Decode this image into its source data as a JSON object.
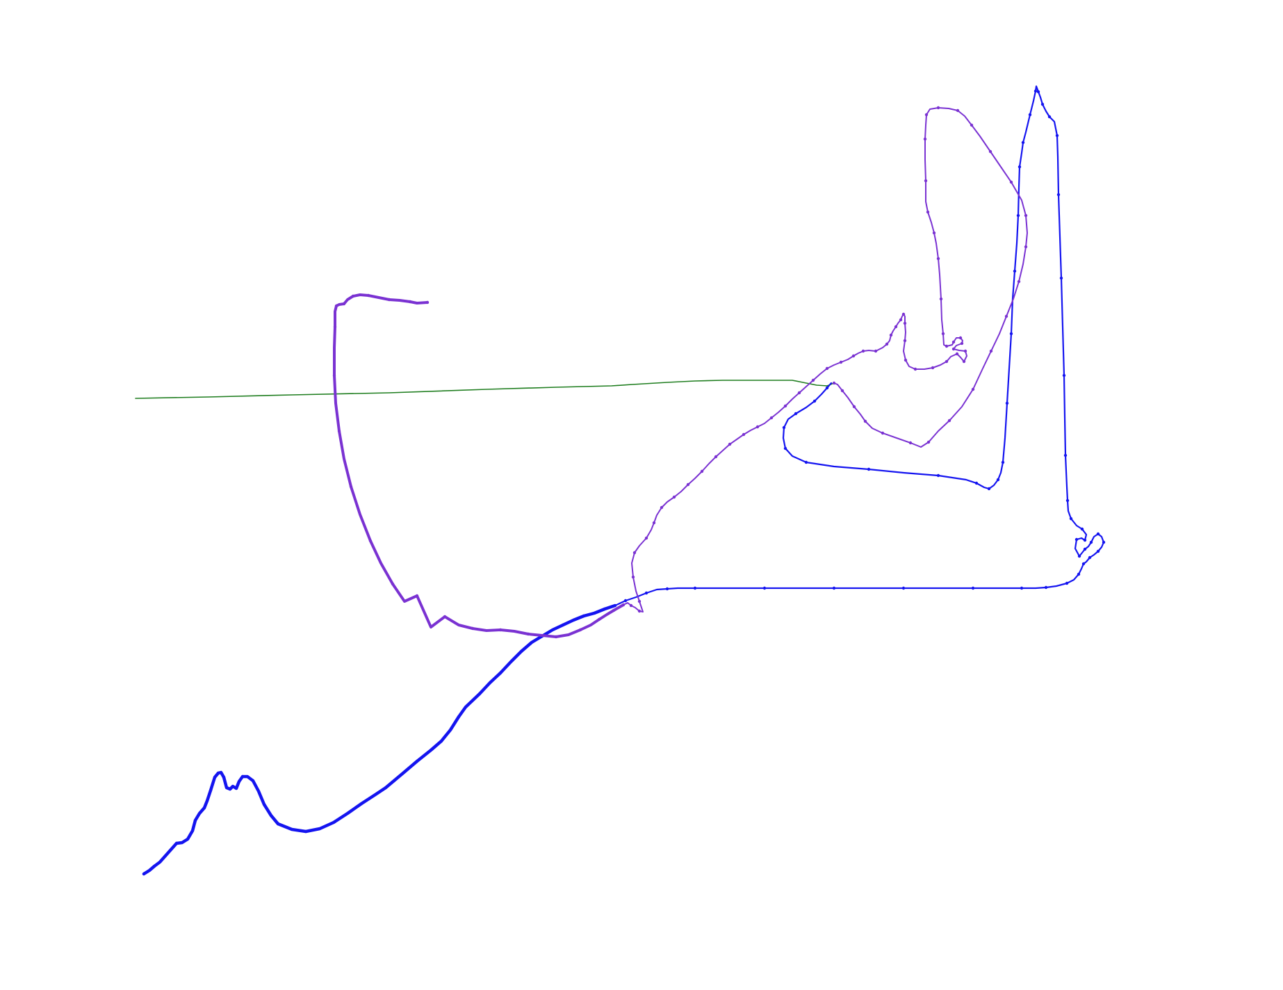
{
  "colors": {
    "background": "#ffffff",
    "blue": "#1414f0",
    "purple": "#7a32d2",
    "green": "#1e7d1e"
  },
  "traces": [
    {
      "name": "green-trace",
      "color": "#1e7d1e",
      "vertex_markers": false,
      "path": [
        [
          195,
          573
        ],
        [
          300,
          571
        ],
        [
          420,
          568
        ],
        [
          560,
          565
        ],
        [
          700,
          560
        ],
        [
          800,
          557
        ],
        [
          880,
          555
        ],
        [
          910,
          553
        ],
        [
          960,
          550
        ],
        [
          1000,
          548
        ],
        [
          1040,
          547
        ],
        [
          1100,
          547
        ],
        [
          1140,
          547
        ],
        [
          1160,
          551
        ],
        [
          1175,
          554
        ],
        [
          1190,
          555
        ],
        [
          1200,
          551
        ]
      ]
    },
    {
      "name": "blue-trace",
      "color": "#1414f0",
      "vertex_markers": true,
      "path": [
        [
          207,
          1257
        ],
        [
          215,
          1252
        ],
        [
          222,
          1246
        ],
        [
          230,
          1240
        ],
        [
          238,
          1231
        ],
        [
          246,
          1222
        ],
        [
          254,
          1213
        ],
        [
          262,
          1212
        ],
        [
          270,
          1207
        ],
        [
          277,
          1195
        ],
        [
          281,
          1180
        ],
        [
          287,
          1170
        ],
        [
          294,
          1162
        ],
        [
          298,
          1152
        ],
        [
          303,
          1137
        ],
        [
          309,
          1118
        ],
        [
          314,
          1112
        ],
        [
          318,
          1111
        ],
        [
          322,
          1118
        ],
        [
          326,
          1133
        ],
        [
          331,
          1135
        ],
        [
          335,
          1131
        ],
        [
          340,
          1134
        ],
        [
          344,
          1124
        ],
        [
          349,
          1117
        ],
        [
          356,
          1117
        ],
        [
          364,
          1123
        ],
        [
          372,
          1138
        ],
        [
          380,
          1157
        ],
        [
          390,
          1173
        ],
        [
          400,
          1185
        ],
        [
          420,
          1193
        ],
        [
          440,
          1196
        ],
        [
          460,
          1192
        ],
        [
          480,
          1183
        ],
        [
          500,
          1170
        ],
        [
          520,
          1156
        ],
        [
          540,
          1143
        ],
        [
          555,
          1133
        ],
        [
          580,
          1112
        ],
        [
          600,
          1095
        ],
        [
          620,
          1079
        ],
        [
          635,
          1066
        ],
        [
          648,
          1050
        ],
        [
          660,
          1031
        ],
        [
          670,
          1017
        ],
        [
          690,
          998
        ],
        [
          705,
          982
        ],
        [
          720,
          968
        ],
        [
          735,
          952
        ],
        [
          750,
          937
        ],
        [
          765,
          924
        ],
        [
          780,
          915
        ],
        [
          795,
          906
        ],
        [
          810,
          899
        ],
        [
          825,
          892
        ],
        [
          840,
          886
        ],
        [
          855,
          882
        ],
        [
          870,
          876
        ],
        [
          885,
          871
        ],
        [
          900,
          864
        ],
        [
          915,
          859
        ],
        [
          930,
          853
        ],
        [
          945,
          848
        ],
        [
          960,
          847
        ],
        [
          975,
          846
        ],
        [
          1000,
          846
        ],
        [
          1050,
          846
        ],
        [
          1100,
          846
        ],
        [
          1150,
          846
        ],
        [
          1200,
          846
        ],
        [
          1250,
          846
        ],
        [
          1300,
          846
        ],
        [
          1350,
          846
        ],
        [
          1400,
          846
        ],
        [
          1440,
          846
        ],
        [
          1470,
          846
        ],
        [
          1490,
          846
        ],
        [
          1505,
          845
        ],
        [
          1520,
          843
        ],
        [
          1535,
          839
        ],
        [
          1545,
          834
        ],
        [
          1552,
          826
        ],
        [
          1556,
          818
        ],
        [
          1559,
          811
        ],
        [
          1563,
          808
        ],
        [
          1568,
          802
        ],
        [
          1574,
          798
        ],
        [
          1580,
          793
        ],
        [
          1585,
          787
        ],
        [
          1588,
          780
        ],
        [
          1585,
          772
        ],
        [
          1580,
          768
        ],
        [
          1574,
          772
        ],
        [
          1570,
          780
        ],
        [
          1566,
          786
        ],
        [
          1561,
          790
        ],
        [
          1557,
          795
        ],
        [
          1553,
          800
        ],
        [
          1547,
          789
        ],
        [
          1549,
          776
        ],
        [
          1556,
          774
        ],
        [
          1561,
          777
        ],
        [
          1563,
          769
        ],
        [
          1557,
          761
        ],
        [
          1549,
          756
        ],
        [
          1541,
          746
        ],
        [
          1537,
          735
        ],
        [
          1536,
          720
        ],
        [
          1535,
          700
        ],
        [
          1533,
          655
        ],
        [
          1532,
          600
        ],
        [
          1531,
          540
        ],
        [
          1529,
          470
        ],
        [
          1527,
          400
        ],
        [
          1525,
          340
        ],
        [
          1523,
          280
        ],
        [
          1522,
          225
        ],
        [
          1521,
          195
        ],
        [
          1517,
          175
        ],
        [
          1510,
          168
        ],
        [
          1505,
          160
        ],
        [
          1500,
          150
        ],
        [
          1497,
          140
        ],
        [
          1494,
          132
        ],
        [
          1491,
          124
        ],
        [
          1490,
          131
        ],
        [
          1487,
          145
        ],
        [
          1482,
          165
        ],
        [
          1476,
          190
        ],
        [
          1472,
          205
        ],
        [
          1470,
          220
        ],
        [
          1467,
          240
        ],
        [
          1466,
          270
        ],
        [
          1465,
          310
        ],
        [
          1463,
          350
        ],
        [
          1460,
          390
        ],
        [
          1457,
          430
        ],
        [
          1455,
          480
        ],
        [
          1452,
          530
        ],
        [
          1449,
          580
        ],
        [
          1446,
          630
        ],
        [
          1443,
          665
        ],
        [
          1440,
          680
        ],
        [
          1436,
          690
        ],
        [
          1430,
          698
        ],
        [
          1423,
          703
        ],
        [
          1416,
          701
        ],
        [
          1405,
          695
        ],
        [
          1390,
          690
        ],
        [
          1350,
          684
        ],
        [
          1300,
          680
        ],
        [
          1250,
          675
        ],
        [
          1200,
          671
        ],
        [
          1160,
          665
        ],
        [
          1140,
          656
        ],
        [
          1130,
          645
        ],
        [
          1127,
          630
        ],
        [
          1128,
          615
        ],
        [
          1134,
          603
        ],
        [
          1145,
          595
        ],
        [
          1160,
          586
        ],
        [
          1172,
          577
        ],
        [
          1182,
          567
        ],
        [
          1190,
          558
        ],
        [
          1196,
          551
        ]
      ]
    },
    {
      "name": "purple-trace",
      "color": "#7a32d2",
      "vertex_markers": true,
      "path": [
        [
          615,
          435
        ],
        [
          600,
          436
        ],
        [
          590,
          434
        ],
        [
          575,
          432
        ],
        [
          560,
          431
        ],
        [
          545,
          428
        ],
        [
          530,
          425
        ],
        [
          518,
          424
        ],
        [
          508,
          426
        ],
        [
          500,
          431
        ],
        [
          495,
          437
        ],
        [
          488,
          438
        ],
        [
          484,
          440
        ],
        [
          482,
          448
        ],
        [
          482,
          470
        ],
        [
          481,
          500
        ],
        [
          481,
          540
        ],
        [
          483,
          580
        ],
        [
          488,
          620
        ],
        [
          495,
          660
        ],
        [
          505,
          700
        ],
        [
          518,
          740
        ],
        [
          533,
          778
        ],
        [
          548,
          810
        ],
        [
          565,
          840
        ],
        [
          582,
          865
        ],
        [
          600,
          857
        ],
        [
          620,
          902
        ],
        [
          640,
          887
        ],
        [
          660,
          899
        ],
        [
          680,
          904
        ],
        [
          700,
          907
        ],
        [
          720,
          906
        ],
        [
          740,
          908
        ],
        [
          760,
          912
        ],
        [
          780,
          914
        ],
        [
          800,
          916
        ],
        [
          818,
          913
        ],
        [
          835,
          906
        ],
        [
          850,
          899
        ],
        [
          862,
          891
        ],
        [
          873,
          884
        ],
        [
          883,
          878
        ],
        [
          890,
          874
        ],
        [
          897,
          870
        ],
        [
          903,
          867
        ],
        [
          908,
          871
        ],
        [
          914,
          874
        ],
        [
          920,
          879
        ],
        [
          925,
          880
        ],
        [
          920,
          865
        ],
        [
          915,
          850
        ],
        [
          911,
          830
        ],
        [
          909,
          810
        ],
        [
          913,
          795
        ],
        [
          920,
          785
        ],
        [
          930,
          774
        ],
        [
          937,
          762
        ],
        [
          941,
          752
        ],
        [
          945,
          741
        ],
        [
          952,
          730
        ],
        [
          960,
          722
        ],
        [
          970,
          715
        ],
        [
          980,
          707
        ],
        [
          990,
          697
        ],
        [
          1000,
          688
        ],
        [
          1010,
          678
        ],
        [
          1020,
          667
        ],
        [
          1030,
          657
        ],
        [
          1040,
          648
        ],
        [
          1050,
          639
        ],
        [
          1060,
          632
        ],
        [
          1070,
          625
        ],
        [
          1080,
          619
        ],
        [
          1090,
          614
        ],
        [
          1100,
          609
        ],
        [
          1110,
          601
        ],
        [
          1120,
          593
        ],
        [
          1130,
          584
        ],
        [
          1140,
          574
        ],
        [
          1150,
          565
        ],
        [
          1160,
          556
        ],
        [
          1170,
          547
        ],
        [
          1180,
          538
        ],
        [
          1190,
          530
        ],
        [
          1200,
          525
        ],
        [
          1210,
          521
        ],
        [
          1220,
          517
        ],
        [
          1228,
          512
        ],
        [
          1235,
          508
        ],
        [
          1242,
          505
        ],
        [
          1250,
          504
        ],
        [
          1260,
          505
        ],
        [
          1270,
          500
        ],
        [
          1276,
          495
        ],
        [
          1280,
          490
        ],
        [
          1282,
          482
        ],
        [
          1285,
          476
        ],
        [
          1289,
          470
        ],
        [
          1292,
          465
        ],
        [
          1296,
          460
        ],
        [
          1298,
          455
        ],
        [
          1300,
          452
        ],
        [
          1302,
          455
        ],
        [
          1302,
          465
        ],
        [
          1303,
          478
        ],
        [
          1302,
          490
        ],
        [
          1300,
          505
        ],
        [
          1303,
          518
        ],
        [
          1308,
          527
        ],
        [
          1317,
          531
        ],
        [
          1330,
          531
        ],
        [
          1342,
          529
        ],
        [
          1353,
          525
        ],
        [
          1362,
          520
        ],
        [
          1368,
          513
        ],
        [
          1377,
          509
        ],
        [
          1382,
          514
        ],
        [
          1387,
          520
        ],
        [
          1391,
          512
        ],
        [
          1389,
          505
        ],
        [
          1380,
          504
        ],
        [
          1372,
          502
        ],
        [
          1376,
          497
        ],
        [
          1384,
          494
        ],
        [
          1385,
          490
        ],
        [
          1382,
          486
        ],
        [
          1376,
          486
        ],
        [
          1372,
          492
        ],
        [
          1370,
          496
        ],
        [
          1362,
          498
        ],
        [
          1358,
          496
        ],
        [
          1357,
          480
        ],
        [
          1355,
          460
        ],
        [
          1354,
          430
        ],
        [
          1352,
          395
        ],
        [
          1350,
          372
        ],
        [
          1347,
          350
        ],
        [
          1344,
          335
        ],
        [
          1340,
          320
        ],
        [
          1335,
          305
        ],
        [
          1332,
          290
        ],
        [
          1332,
          260
        ],
        [
          1331,
          230
        ],
        [
          1331,
          200
        ],
        [
          1332,
          180
        ],
        [
          1333,
          165
        ],
        [
          1338,
          157
        ],
        [
          1350,
          155
        ],
        [
          1365,
          156
        ],
        [
          1378,
          159
        ],
        [
          1388,
          167
        ],
        [
          1398,
          180
        ],
        [
          1410,
          196
        ],
        [
          1425,
          218
        ],
        [
          1440,
          240
        ],
        [
          1455,
          262
        ],
        [
          1470,
          288
        ],
        [
          1476,
          310
        ],
        [
          1478,
          335
        ],
        [
          1476,
          355
        ],
        [
          1472,
          380
        ],
        [
          1466,
          405
        ],
        [
          1458,
          430
        ],
        [
          1448,
          455
        ],
        [
          1438,
          480
        ],
        [
          1426,
          505
        ],
        [
          1414,
          530
        ],
        [
          1400,
          560
        ],
        [
          1384,
          585
        ],
        [
          1366,
          605
        ],
        [
          1350,
          620
        ],
        [
          1336,
          636
        ],
        [
          1325,
          643
        ],
        [
          1310,
          637
        ],
        [
          1290,
          630
        ],
        [
          1270,
          623
        ],
        [
          1255,
          616
        ],
        [
          1245,
          606
        ],
        [
          1238,
          596
        ],
        [
          1229,
          585
        ],
        [
          1220,
          572
        ],
        [
          1212,
          562
        ],
        [
          1205,
          553
        ],
        [
          1200,
          551
        ]
      ]
    }
  ]
}
